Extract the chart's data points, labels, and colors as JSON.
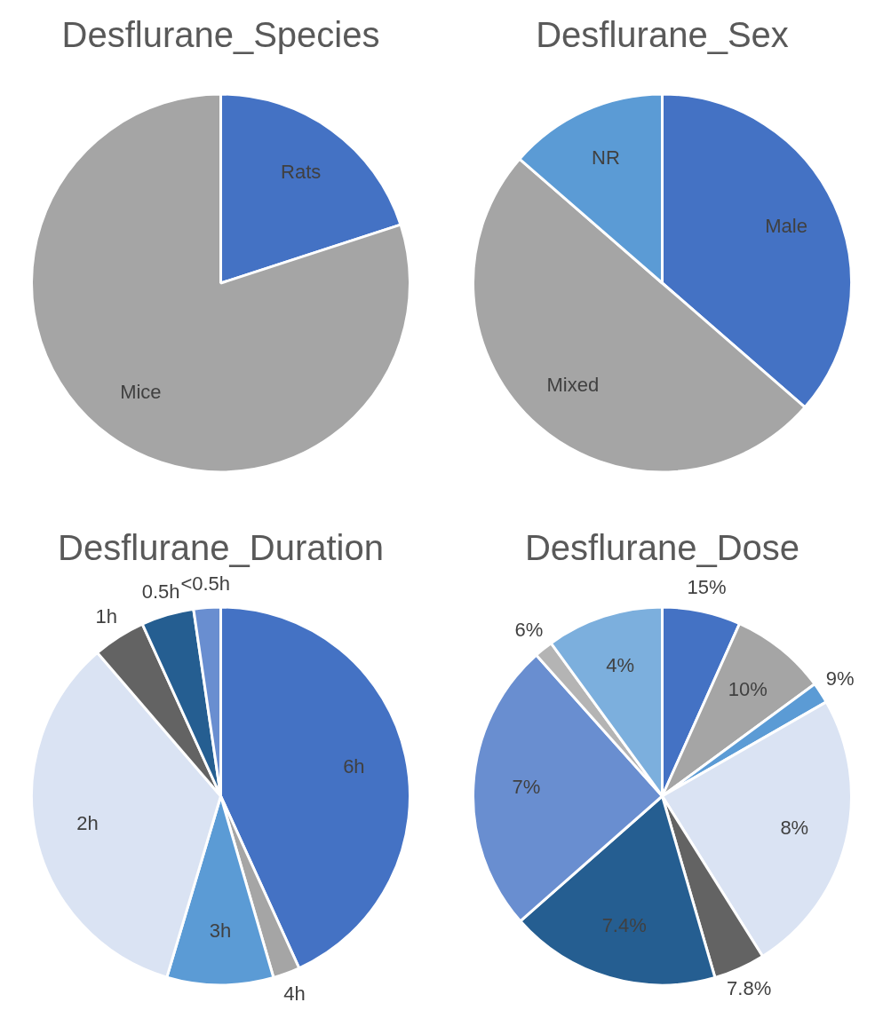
{
  "chart_data": [
    {
      "type": "pie",
      "title": "Desflurane_Species",
      "categories": [
        "Rats",
        "Mice"
      ],
      "values": [
        20,
        80
      ],
      "colors": [
        "#4472c4",
        "#a5a5a5"
      ]
    },
    {
      "type": "pie",
      "title": "Desflurane_Sex",
      "categories": [
        "Male",
        "Mixed",
        "NR"
      ],
      "values": [
        36.4,
        50,
        13.6
      ],
      "colors": [
        "#4472c4",
        "#a5a5a5",
        "#5b9bd5"
      ]
    },
    {
      "type": "pie",
      "title": "Desflurane_Duration",
      "categories": [
        "6h",
        "4h",
        "3h",
        "2h",
        "1h",
        "0.5h",
        "<0.5h"
      ],
      "values": [
        43.2,
        2.3,
        9.1,
        34.1,
        4.5,
        4.5,
        2.3
      ],
      "colors": [
        "#4472c4",
        "#a5a5a5",
        "#5b9bd5",
        "#dae3f3",
        "#636363",
        "#255e91",
        "#698ed0"
      ]
    },
    {
      "type": "pie",
      "title": "Desflurane_Dose",
      "categories": [
        "15%",
        "10%",
        "9%",
        "8%",
        "7.8%",
        "7.4%",
        "7%",
        "6%",
        "4%"
      ],
      "values": [
        6.7,
        8.2,
        1.8,
        24.4,
        4.4,
        18.0,
        24.9,
        1.6,
        10.0
      ],
      "colors": [
        "#4472c4",
        "#a5a5a5",
        "#5b9bd5",
        "#dae3f3",
        "#636363",
        "#255e91",
        "#698ed0",
        "#b4b4b4",
        "#7cafdd"
      ]
    }
  ]
}
